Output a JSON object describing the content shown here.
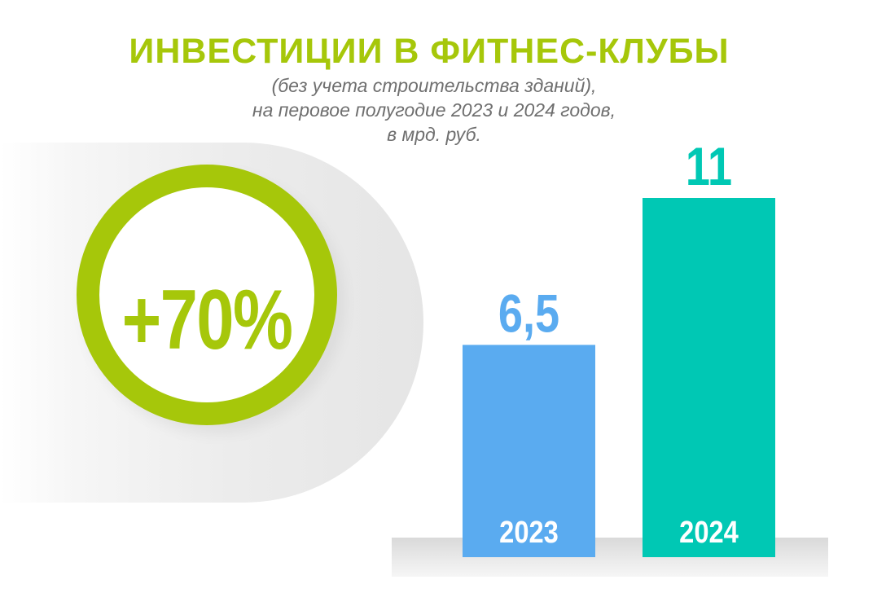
{
  "header": {
    "title": "ИНВЕСТИЦИИ В ФИТНЕС-КЛУБЫ",
    "subtitle_lines": [
      "(без учета строительства зданий),",
      "на перовое полугодие 2023 и 2024 годов,",
      "в мрд. руб."
    ]
  },
  "growth": {
    "label": "+70%"
  },
  "colors": {
    "accent_green": "#a6c70a",
    "bar_2023": "#5aabf0",
    "bar_2024": "#00c8b4",
    "subtitle_gray": "#6f6f6f"
  },
  "chart_data": {
    "type": "bar",
    "categories": [
      "2023",
      "2024"
    ],
    "values": [
      6.5,
      11
    ],
    "value_labels": [
      "6,5",
      "11"
    ],
    "bar_colors": [
      "#5aabf0",
      "#00c8b4"
    ],
    "title": "ИНВЕСТИЦИИ В ФИТНЕС-КЛУБЫ",
    "ylim": [
      0,
      11
    ],
    "grid": false,
    "legend": "none"
  }
}
